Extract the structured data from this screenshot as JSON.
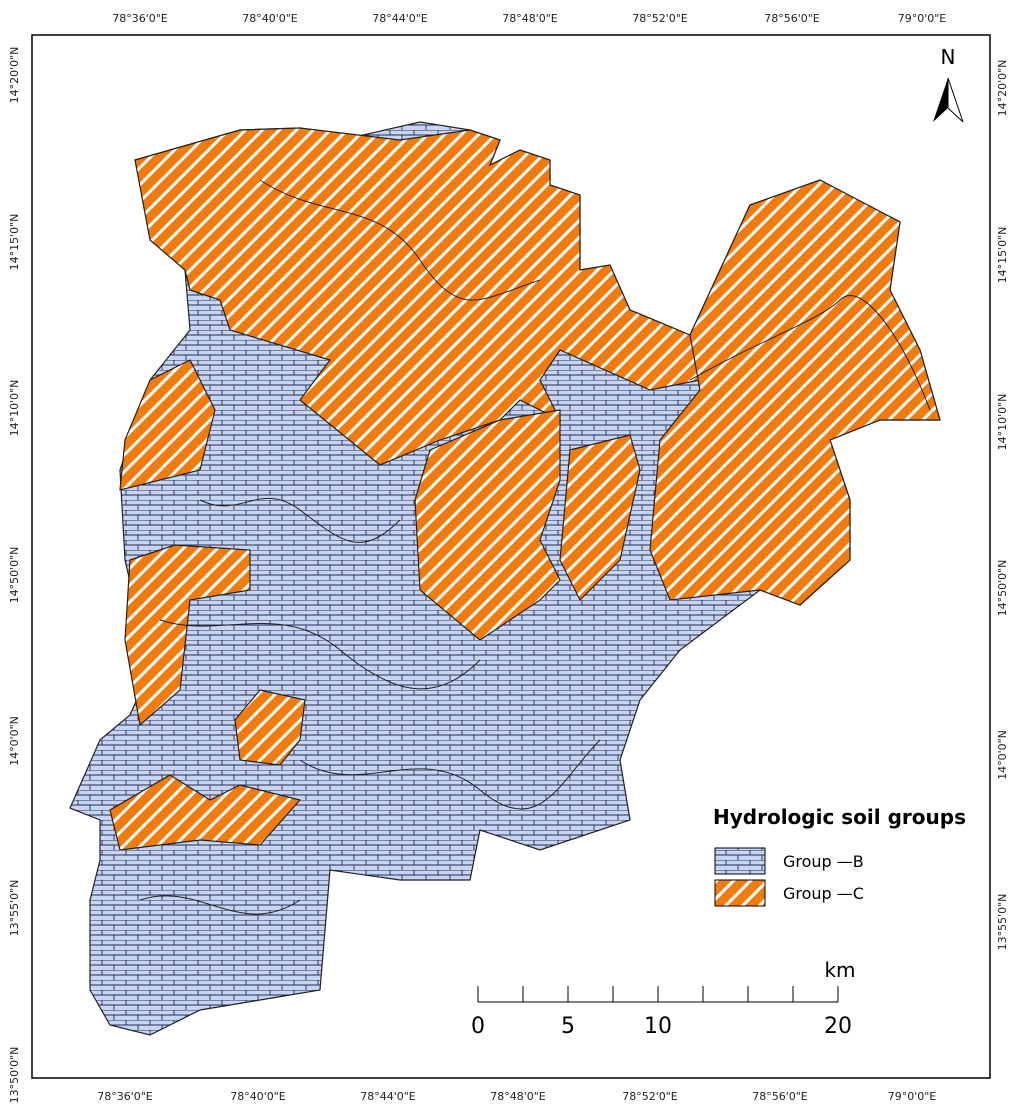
{
  "map": {
    "top_labels": [
      "78°36'0\"E",
      "78°40'0\"E",
      "78°44'0\"E",
      "78°48'0\"E",
      "78°52'0\"E",
      "78°56'0\"E",
      "79°0'0\"E"
    ],
    "bottom_labels": [
      "78°36'0\"E",
      "78°40'0\"E",
      "78°44'0\"E",
      "78°48'0\"E",
      "78°52'0\"E",
      "78°56'0\"E",
      "79°0'0\"E"
    ],
    "left_labels": [
      "14°20'0\"N",
      "14°15'0\"N",
      "14°10'0\"N",
      "14°50'0\"N",
      "14°0'0\"N",
      "13°55'0\"N",
      "13°50'0\"N"
    ],
    "right_labels": [
      "14°20'0\"N",
      "14°15'0\"N",
      "14°10'0\"N",
      "14°50'0\"N",
      "14°0'0\"N",
      "13°55'0\"N"
    ],
    "north": "N",
    "legend": {
      "title": "Hydrologic soil groups",
      "items": [
        "Group —B",
        "Group —C"
      ]
    },
    "scale": {
      "unit": "km",
      "labels": [
        0,
        5,
        10,
        20
      ]
    }
  }
}
